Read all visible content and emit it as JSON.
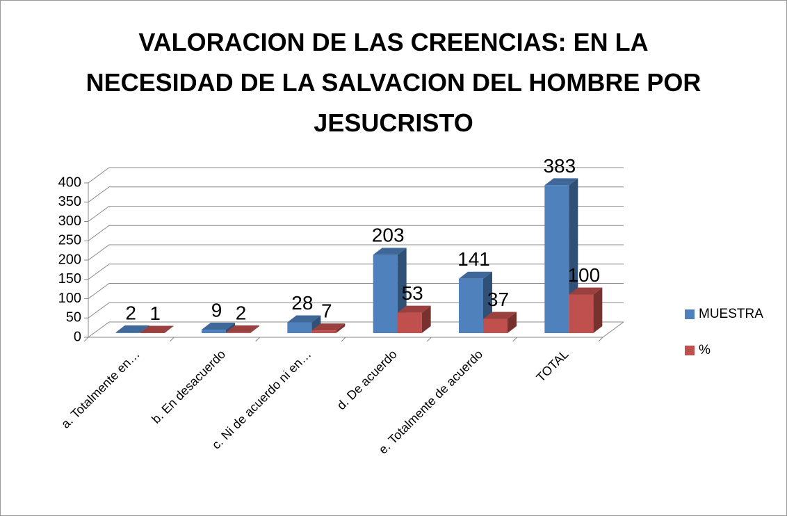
{
  "chart_data": {
    "type": "bar3d",
    "title": "VALORACION DE LAS CREENCIAS: EN LA NECESIDAD DE LA SALVACION DEL HOMBRE POR JESUCRISTO",
    "categories": [
      "a. Totalmente en…",
      "b. En desacuerdo",
      "c. Ni de acuerdo ni en…",
      "d. De acuerdo",
      "e. Totalmente de acuerdo",
      "TOTAL"
    ],
    "series": [
      {
        "name": "MUESTRA",
        "color": "#4f81bd",
        "values": [
          2,
          9,
          28,
          203,
          141,
          383
        ]
      },
      {
        "name": "%",
        "color": "#c0504d",
        "values": [
          1,
          2,
          7,
          53,
          37,
          100
        ]
      }
    ],
    "ylim": [
      0,
      400
    ],
    "yticks": [
      0,
      50,
      100,
      150,
      200,
      250,
      300,
      350,
      400
    ],
    "grid": true,
    "legend": "right"
  }
}
